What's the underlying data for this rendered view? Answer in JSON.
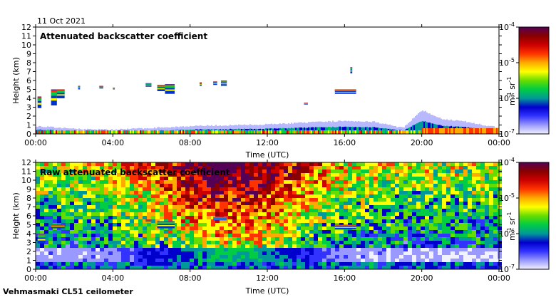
{
  "date_label": "11 Oct 2021",
  "footer_label": "Vehmasmaki CL51 ceilometer",
  "colorbar": {
    "unit_main": "m",
    "unit_exp1": "-1",
    "unit_mid": " sr",
    "unit_exp2": "-1",
    "ticks": [
      {
        "base": "10",
        "exp": "-4",
        "value": 0.0001
      },
      {
        "base": "10",
        "exp": "-5",
        "value": 1e-05
      },
      {
        "base": "10",
        "exp": "-6",
        "value": 1e-06
      },
      {
        "base": "10",
        "exp": "-7",
        "value": 1e-07
      }
    ],
    "colors": [
      "#f2f2ff",
      "#9999ff",
      "#3333ff",
      "#0000cc",
      "#009999",
      "#00cc44",
      "#66dd00",
      "#ffff00",
      "#ffaa00",
      "#ff3300",
      "#cc0000",
      "#880000",
      "#550055"
    ]
  },
  "chart_data": [
    {
      "type": "heatmap",
      "title": "Attenuated backscatter coefficient",
      "xlabel": "Time (UTC)",
      "ylabel": "Height (km)",
      "xlim": [
        "00:00",
        "24:00"
      ],
      "ylim": [
        0,
        12
      ],
      "x_tick_labels": [
        "00:00",
        "04:00",
        "08:00",
        "12:00",
        "16:00",
        "20:00",
        "00:00"
      ],
      "y_tick_labels": [
        "0",
        "1",
        "2",
        "3",
        "4",
        "5",
        "6",
        "7",
        "8",
        "9",
        "10",
        "11",
        "12"
      ],
      "color_scale": "log",
      "color_range": [
        1e-07,
        0.0001
      ],
      "boundary_layer_top_km": [
        [
          0,
          0.8
        ],
        [
          2,
          0.5
        ],
        [
          4,
          0.4
        ],
        [
          6,
          0.6
        ],
        [
          8,
          0.8
        ],
        [
          10,
          0.9
        ],
        [
          12,
          1.0
        ],
        [
          14,
          1.2
        ],
        [
          16,
          1.4
        ],
        [
          17.5,
          1.3
        ],
        [
          19,
          0.6
        ],
        [
          20,
          2.6
        ],
        [
          21,
          1.6
        ],
        [
          22,
          1.4
        ],
        [
          24,
          0.6
        ]
      ],
      "cloud_layers": [
        {
          "t0": 0.1,
          "t1": 0.3,
          "h0": 2.9,
          "h1": 4.2
        },
        {
          "t0": 0.8,
          "t1": 1.1,
          "h0": 3.2,
          "h1": 5.0
        },
        {
          "t0": 1.1,
          "t1": 1.5,
          "h0": 4.0,
          "h1": 5.0
        },
        {
          "t0": 2.2,
          "t1": 2.3,
          "h0": 5.0,
          "h1": 5.4
        },
        {
          "t0": 3.3,
          "t1": 3.5,
          "h0": 5.1,
          "h1": 5.4
        },
        {
          "t0": 4.0,
          "t1": 4.1,
          "h0": 5.0,
          "h1": 5.2
        },
        {
          "t0": 5.7,
          "t1": 6.0,
          "h0": 5.3,
          "h1": 5.7
        },
        {
          "t0": 6.3,
          "t1": 6.7,
          "h0": 4.8,
          "h1": 5.5
        },
        {
          "t0": 6.7,
          "t1": 7.2,
          "h0": 4.5,
          "h1": 5.6
        },
        {
          "t0": 8.5,
          "t1": 8.6,
          "h0": 5.4,
          "h1": 5.8
        },
        {
          "t0": 9.2,
          "t1": 9.4,
          "h0": 5.5,
          "h1": 5.9
        },
        {
          "t0": 9.6,
          "t1": 9.9,
          "h0": 5.4,
          "h1": 6.0
        },
        {
          "t0": 13.9,
          "t1": 14.1,
          "h0": 3.3,
          "h1": 3.5
        },
        {
          "t0": 15.5,
          "t1": 16.6,
          "h0": 4.5,
          "h1": 5.0
        },
        {
          "t0": 16.3,
          "t1": 16.4,
          "h0": 6.8,
          "h1": 7.5
        }
      ]
    },
    {
      "type": "heatmap",
      "title": "Raw attenuated backscatter coefficient",
      "xlabel": "Time (UTC)",
      "ylabel": "Height (km)",
      "xlim": [
        "00:00",
        "24:00"
      ],
      "ylim": [
        0,
        12
      ],
      "x_tick_labels": [
        "00:00",
        "04:00",
        "08:00",
        "12:00",
        "16:00",
        "20:00",
        "00:00"
      ],
      "y_tick_labels": [
        "0",
        "1",
        "2",
        "3",
        "4",
        "5",
        "6",
        "7",
        "8",
        "9",
        "10",
        "11",
        "12"
      ],
      "color_scale": "log",
      "color_range": [
        1e-07,
        0.0001
      ],
      "noise_peak_time": 10.0,
      "cloud_layers": [
        {
          "t0": 0.1,
          "t1": 0.5,
          "h0": 2.9,
          "h1": 4.0
        },
        {
          "t0": 0.8,
          "t1": 1.5,
          "h0": 4.6,
          "h1": 5.0
        },
        {
          "t0": 5.7,
          "t1": 6.0,
          "h0": 5.3,
          "h1": 5.6
        },
        {
          "t0": 6.3,
          "t1": 7.2,
          "h0": 4.6,
          "h1": 5.4
        },
        {
          "t0": 9.2,
          "t1": 9.9,
          "h0": 5.5,
          "h1": 5.9
        },
        {
          "t0": 15.5,
          "t1": 16.6,
          "h0": 4.5,
          "h1": 5.0
        }
      ]
    }
  ]
}
